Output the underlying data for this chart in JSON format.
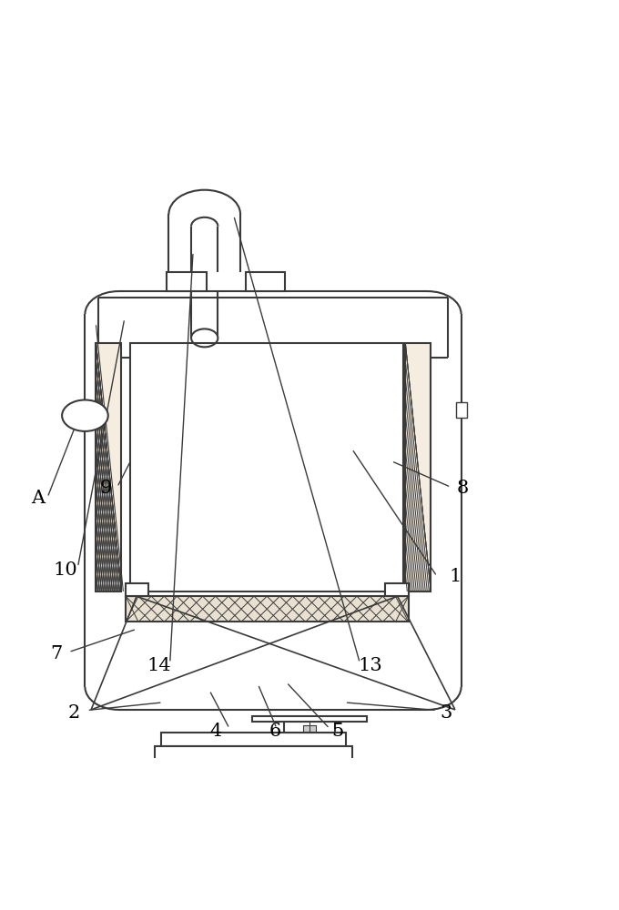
{
  "bg_color": "#ffffff",
  "line_color": "#3a3a3a",
  "lw": 1.5,
  "fig_width": 6.8,
  "fig_height": 10.0
}
